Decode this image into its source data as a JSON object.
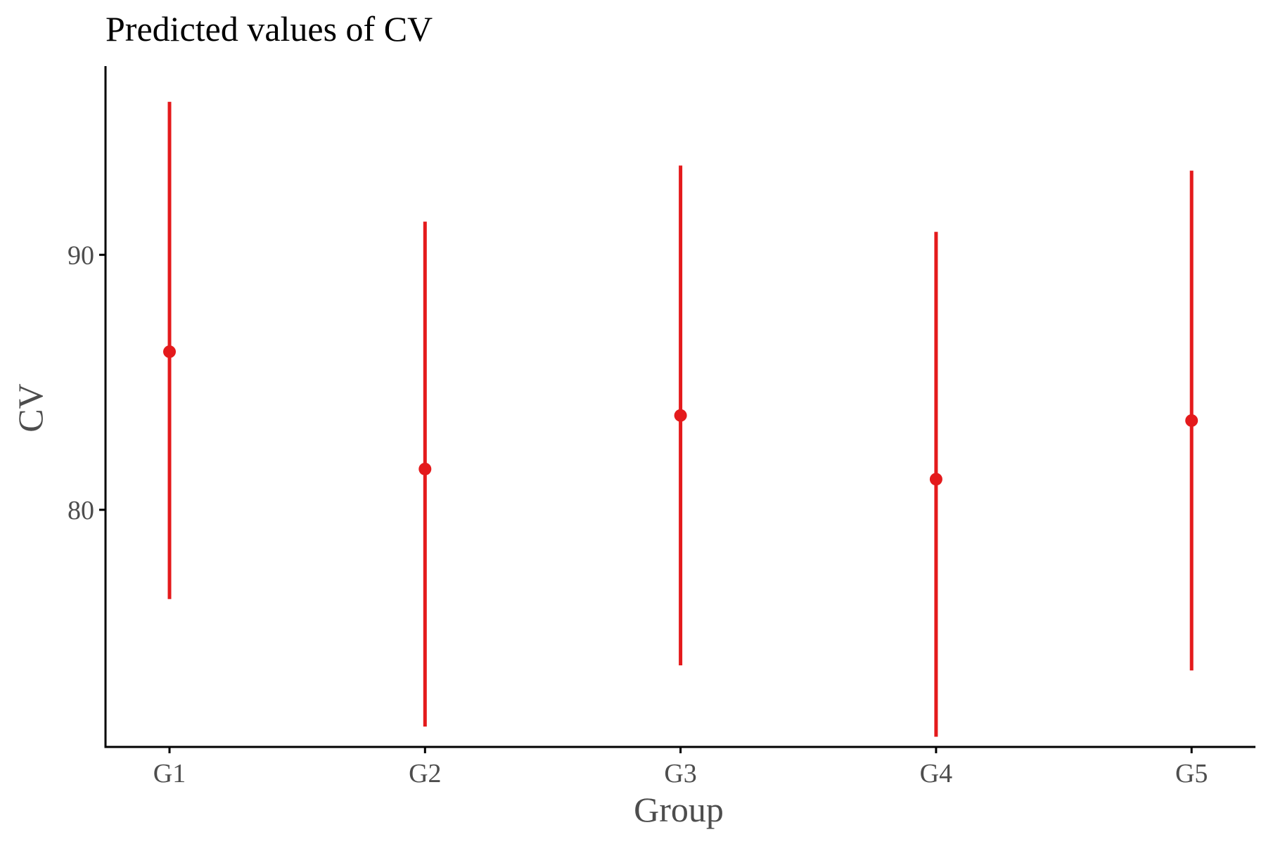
{
  "chart_data": {
    "type": "scatter",
    "title": "Predicted values of CV",
    "xlabel": "Group",
    "ylabel": "CV",
    "categories": [
      "G1",
      "G2",
      "G3",
      "G4",
      "G5"
    ],
    "y_ticks": [
      80,
      90
    ],
    "ylim": [
      70.7,
      97.4
    ],
    "grid": false,
    "legend": "none",
    "series": [
      {
        "values": [
          86.2,
          81.6,
          83.7,
          81.2,
          83.5
        ],
        "ci_low": [
          76.5,
          71.5,
          73.9,
          71.1,
          73.7
        ],
        "ci_high": [
          96.0,
          91.3,
          93.5,
          90.9,
          93.3
        ]
      }
    ],
    "colors": {
      "series": "#e41a1c",
      "axis": "#000000",
      "tick_label": "#4d4d4d"
    }
  }
}
